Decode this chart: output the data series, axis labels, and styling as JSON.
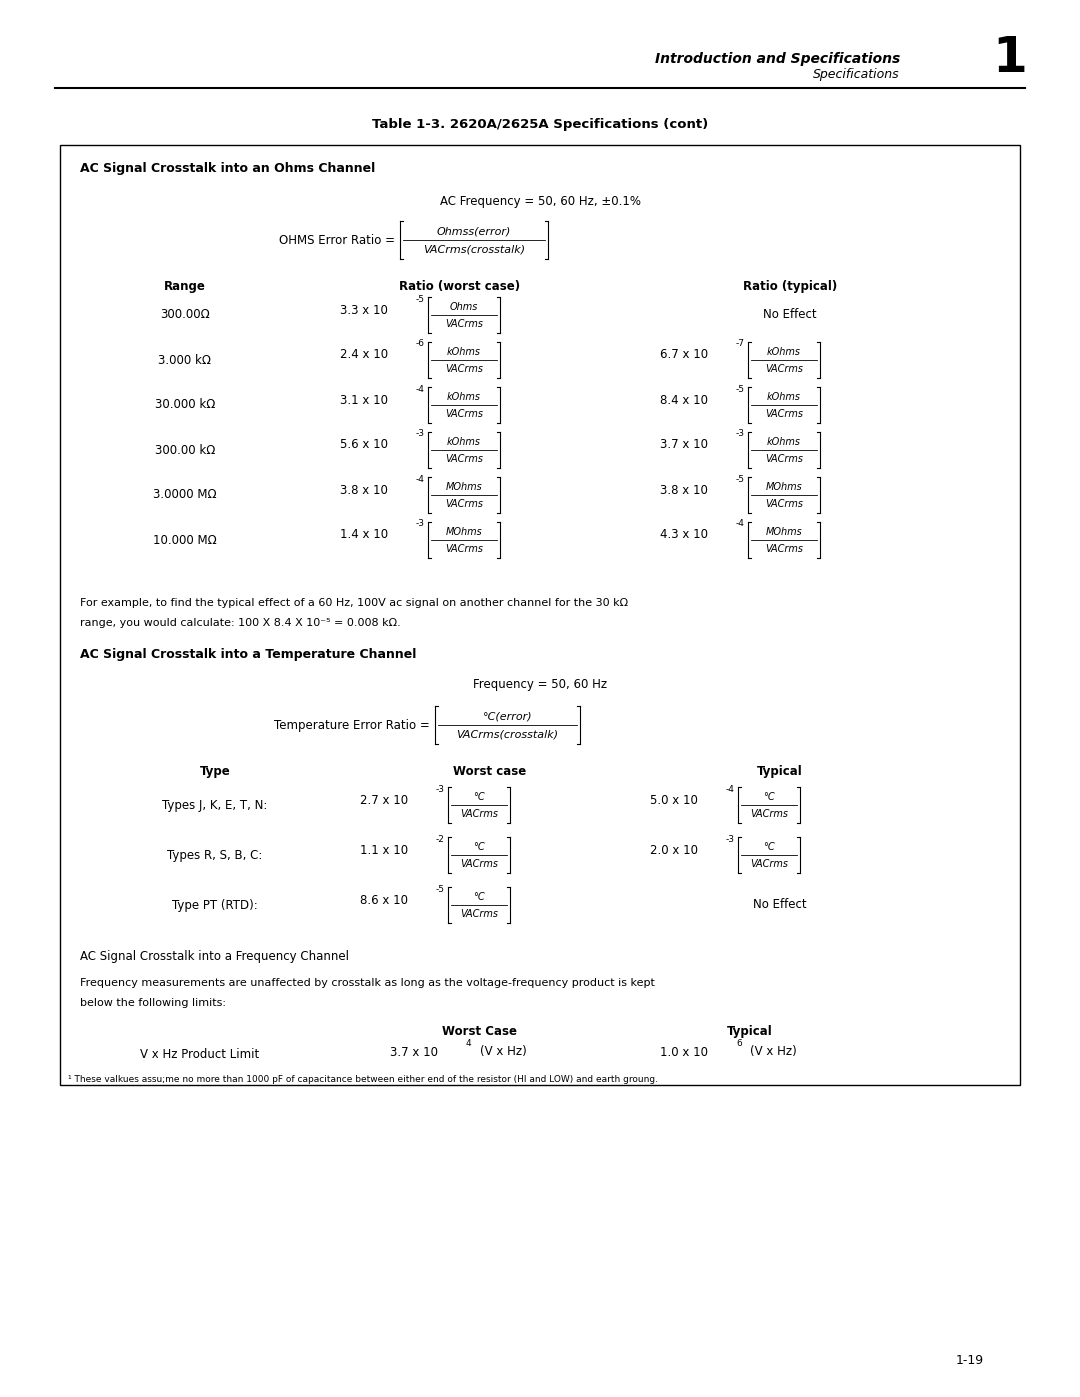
{
  "page_bg": "#ffffff",
  "header_title": "Introduction and Specifications",
  "header_subtitle": "Specifications",
  "chapter_num": "1",
  "table_title": "Table 1-3. 2620A/2625A Specifications (cont)",
  "box_title1": "AC Signal Crosstalk into an Ohms Channel",
  "ac_freq_line": "AC Frequency = 50, 60 Hz, ±0.1%",
  "ohms_ratio_label": "OHMS Error Ratio =",
  "ohms_ratio_num": "Ohmss(error)",
  "ohms_ratio_den": "VACrms(crosstalk)",
  "col_headers": [
    "Range",
    "Ratio (worst case)",
    "Ratio (typical)"
  ],
  "ohms_rows": [
    {
      "range": "300.00Ω",
      "worst_coeff": "3.3 x 10",
      "worst_exp": "-5",
      "worst_unit_num": "Ohms",
      "worst_unit_den": "VACrms",
      "typical_text": "No Effect",
      "typ_coeff": "",
      "typ_exp": "",
      "typ_unit_num": "",
      "typ_unit_den": ""
    },
    {
      "range": "3.000 kΩ",
      "worst_coeff": "2.4 x 10",
      "worst_exp": "-6",
      "worst_unit_num": "kOhms",
      "worst_unit_den": "VACrms",
      "typical_text": "",
      "typ_coeff": "6.7 x 10",
      "typ_exp": "-7",
      "typ_unit_num": "kOhms",
      "typ_unit_den": "VACrms"
    },
    {
      "range": "30.000 kΩ",
      "worst_coeff": "3.1 x 10",
      "worst_exp": "-4",
      "worst_unit_num": "kOhms",
      "worst_unit_den": "VACrms",
      "typical_text": "",
      "typ_coeff": "8.4 x 10",
      "typ_exp": "-5",
      "typ_unit_num": "kOhms",
      "typ_unit_den": "VACrms"
    },
    {
      "range": "300.00 kΩ",
      "worst_coeff": "5.6 x 10",
      "worst_exp": "-3",
      "worst_unit_num": "kOhms",
      "worst_unit_den": "VACrms",
      "typical_text": "",
      "typ_coeff": "3.7 x 10",
      "typ_exp": "-3",
      "typ_unit_num": "kOhms",
      "typ_unit_den": "VACrms"
    },
    {
      "range": "3.0000 MΩ",
      "worst_coeff": "3.8 x 10",
      "worst_exp": "-4",
      "worst_unit_num": "MOhms",
      "worst_unit_den": "VACrms",
      "typical_text": "",
      "typ_coeff": "3.8 x 10",
      "typ_exp": "-5",
      "typ_unit_num": "MOhms",
      "typ_unit_den": "VACrms"
    },
    {
      "range": "10.000 MΩ",
      "worst_coeff": "1.4 x 10",
      "worst_exp": "-3",
      "worst_unit_num": "MOhms",
      "worst_unit_den": "VACrms",
      "typical_text": "",
      "typ_coeff": "4.3 x 10",
      "typ_exp": "-4",
      "typ_unit_num": "MOhms",
      "typ_unit_den": "VACrms"
    }
  ],
  "example_text1": "For example, to find the typical effect of a 60 Hz, 100V ac signal on another channel for the 30 kΩ",
  "example_text2": "range, you would calculate: 100 X 8.4 X 10⁻⁵ = 0.008 kΩ.",
  "box_title2": "AC Signal Crosstalk into a Temperature Channel",
  "temp_freq_line": "Frequency = 50, 60 Hz",
  "temp_ratio_label": "Temperature Error Ratio =",
  "temp_ratio_num": "°C(error)",
  "temp_ratio_den": "VACrms(crosstalk)",
  "temp_col_headers": [
    "Type",
    "Worst case",
    "Typical"
  ],
  "temp_rows": [
    {
      "type": "Types J, K, E, T, N:",
      "worst_coeff": "2.7 x 10",
      "worst_exp": "-3",
      "worst_unit_num": "°C",
      "worst_unit_den": "VACrms",
      "typical_text": "",
      "typ_coeff": "5.0 x 10",
      "typ_exp": "-4",
      "typ_unit_num": "°C",
      "typ_unit_den": "VACrms"
    },
    {
      "type": "Types R, S, B, C:",
      "worst_coeff": "1.1 x 10",
      "worst_exp": "-2",
      "worst_unit_num": "°C",
      "worst_unit_den": "VACrms",
      "typical_text": "",
      "typ_coeff": "2.0 x 10",
      "typ_exp": "-3",
      "typ_unit_num": "°C",
      "typ_unit_den": "VACrms"
    },
    {
      "type": "Type PT (RTD):",
      "worst_coeff": "8.6 x 10",
      "worst_exp": "-5",
      "worst_unit_num": "°C",
      "worst_unit_den": "VACrms",
      "typical_text": "No Effect",
      "typ_coeff": "",
      "typ_exp": "",
      "typ_unit_num": "",
      "typ_unit_den": ""
    }
  ],
  "freq_channel_title": "AC Signal Crosstalk into a Frequency Channel",
  "freq_text1": "Frequency measurements are unaffected by crosstalk as long as the voltage-frequency product is kept",
  "freq_text2": "below the following limits:",
  "freq_col_headers": [
    "Worst Case",
    "Typical"
  ],
  "freq_row_label": "V x Hz Product Limit",
  "freq_worst": "3.7 x 10",
  "freq_worst_exp": "4",
  "freq_worst_unit": "(V x Hz)",
  "freq_typ": "1.0 x 10",
  "freq_typ_exp": "6",
  "freq_typ_unit": "(V x Hz)",
  "footnote": "¹ These valkues assu;me no more than 1000 pF of capacitance between either end of the resistor (HI and LOW) and earth groung.",
  "page_num": "1-19"
}
